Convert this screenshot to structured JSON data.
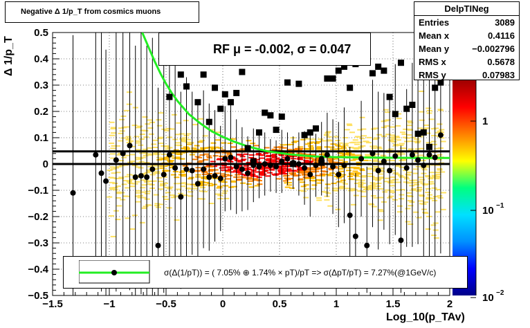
{
  "title": "Negative Δ 1/p_T from cosmics muons",
  "stats": {
    "name": "DelpTINeg",
    "rows": [
      {
        "label": "Entries",
        "value": "3089"
      },
      {
        "label": "Mean x",
        "value": "0.4116"
      },
      {
        "label": "Mean y",
        "value": "−0.002796"
      },
      {
        "label": "RMS x",
        "value": "0.5678"
      },
      {
        "label": "RMS y",
        "value": "0.07983"
      }
    ]
  },
  "fit_legend": "RF μ = -0.002, σ =   0.047",
  "bottom_legend": "σ(Δ(1/pT)) = ( 7.05% ⊕  1.74% × pT)/pT => σ(ΔpT/pT) =  7.27%(@1GeV/c)",
  "colors": {
    "fit_curve": "#22ee22",
    "lines": "#000000",
    "palette": [
      "#000088",
      "#0000ff",
      "#0090ff",
      "#00e0ff",
      "#00ff80",
      "#ffff00",
      "#ff8000",
      "#ff0000",
      "#a00000"
    ]
  },
  "chart_data": {
    "type": "scatter",
    "title": "Negative Δ 1/p_T from cosmics muons",
    "xlabel": "Log_10(p_TAv)",
    "ylabel": "Δ 1/p_T",
    "xlim": [
      -1.5,
      2
    ],
    "ylim": [
      -0.5,
      0.5
    ],
    "x_ticks": [
      "−1.5",
      "−1",
      "−0.5",
      "0",
      "0.5",
      "1",
      "1.5",
      "2"
    ],
    "y_ticks": [
      "−0.5",
      "−0.4",
      "−0.3",
      "−0.2",
      "−0.1",
      "0",
      "0.1",
      "0.2",
      "0.3",
      "0.4",
      "0.5"
    ],
    "z_ticks": [
      "1",
      "10^-1",
      "10^-2"
    ],
    "grid": true,
    "hlines": [
      0.048,
      0.0
    ],
    "fit_curve": {
      "x": [
        -0.71,
        -0.65,
        -0.6,
        -0.55,
        -0.5,
        -0.45,
        -0.4,
        -0.3,
        -0.2,
        -0.1,
        0.0,
        0.1,
        0.2,
        0.3,
        0.4,
        0.6,
        0.8,
        1.0,
        1.4,
        1.8,
        2.0
      ],
      "y": [
        0.5,
        0.44,
        0.39,
        0.345,
        0.305,
        0.27,
        0.24,
        0.19,
        0.155,
        0.125,
        0.103,
        0.085,
        0.07,
        0.058,
        0.048,
        0.036,
        0.029,
        0.026,
        0.024,
        0.023,
        0.023
      ]
    },
    "profile_points": {
      "x": [
        -1.32,
        -1.12,
        -1.07,
        -1.03,
        -0.94,
        -0.88,
        -0.82,
        -0.77,
        -0.72,
        -0.67,
        -0.62,
        -0.57,
        -0.52,
        -0.47,
        -0.42,
        -0.37,
        -0.32,
        -0.27,
        -0.22,
        -0.17,
        -0.12,
        -0.07,
        -0.02,
        0.02,
        0.07,
        0.12,
        0.17,
        0.22,
        0.27,
        0.32,
        0.37,
        0.42,
        0.47,
        0.52,
        0.57,
        0.62,
        0.67,
        0.72,
        0.77,
        0.82,
        0.87,
        0.92,
        0.97,
        1.02,
        1.07,
        1.12,
        1.17,
        1.22,
        1.27,
        1.32,
        1.37,
        1.42,
        1.47,
        1.52,
        1.57,
        1.62,
        1.67,
        1.72,
        1.77,
        1.82,
        1.87,
        1.92
      ],
      "y": [
        -0.11,
        0.035,
        -0.035,
        -0.065,
        0.015,
        0.04,
        0.07,
        -0.05,
        -0.045,
        -0.05,
        -0.02,
        -0.31,
        -0.04,
        0.035,
        -0.015,
        -0.125,
        -0.02,
        -0.025,
        -0.075,
        -0.02,
        -0.05,
        -0.045,
        -0.055,
        0.02,
        0.025,
        -0.01,
        -0.02,
        -0.035,
        -0.005,
        -0.01,
        0.0,
        -0.005,
        -0.01,
        0.01,
        0.02,
        0.005,
        0.0,
        -0.015,
        -0.04,
        -0.005,
        0.02,
        0.035,
        -0.01,
        -0.04,
        -0.005,
        -0.195,
        -0.275,
        0.02,
        -0.31,
        0.04,
        -0.025,
        0.01,
        -0.025,
        0.03,
        -0.29,
        -0.015,
        0.035,
        0.015,
        -0.005,
        0.035,
        0.025,
        0.11
      ],
      "yerr_up": [
        0.6,
        0.5,
        0.6,
        0.5,
        0.6,
        0.5,
        0.6,
        0.5,
        0.55,
        0.5,
        0.5,
        0.6,
        0.5,
        0.45,
        0.4,
        0.4,
        0.35,
        0.3,
        0.3,
        0.3,
        0.28,
        0.25,
        0.2,
        0.2,
        0.2,
        0.18,
        0.16,
        0.14,
        0.14,
        0.12,
        0.12,
        0.1,
        0.1,
        0.12,
        0.1,
        0.1,
        0.12,
        0.14,
        0.16,
        0.12,
        0.14,
        0.16,
        0.18,
        0.2,
        0.22,
        0.26,
        0.24,
        0.22,
        0.3,
        0.28,
        0.3,
        0.26,
        0.28,
        0.35,
        0.36,
        0.3,
        0.35,
        0.32,
        0.4,
        0.4,
        0.42,
        0.45
      ],
      "yerr_dn": [
        0.4,
        0.5,
        0.45,
        0.45,
        0.5,
        0.5,
        0.55,
        0.45,
        0.45,
        0.45,
        0.5,
        0.25,
        0.45,
        0.45,
        0.4,
        0.35,
        0.35,
        0.32,
        0.3,
        0.3,
        0.28,
        0.25,
        0.2,
        0.2,
        0.2,
        0.18,
        0.16,
        0.14,
        0.14,
        0.12,
        0.12,
        0.1,
        0.1,
        0.12,
        0.1,
        0.1,
        0.12,
        0.14,
        0.16,
        0.12,
        0.14,
        0.16,
        0.18,
        0.2,
        0.22,
        0.2,
        0.2,
        0.22,
        0.18,
        0.28,
        0.3,
        0.26,
        0.28,
        0.3,
        0.2,
        0.3,
        0.35,
        0.32,
        0.4,
        0.4,
        0.42,
        0.45
      ]
    },
    "rms_points": {
      "x": [
        -0.47,
        -0.37,
        -0.32,
        -0.22,
        -0.17,
        -0.12,
        -0.07,
        -0.02,
        0.02,
        0.07,
        0.12,
        0.17,
        0.22,
        0.27,
        0.32,
        0.37,
        0.42,
        0.47,
        0.52,
        0.57,
        0.62,
        0.67,
        0.72,
        0.77,
        0.82,
        0.87,
        0.92,
        0.97,
        1.02,
        1.07,
        1.12,
        1.17,
        1.32,
        1.37,
        1.42,
        1.47,
        1.52,
        1.57,
        1.62,
        1.67,
        1.72,
        1.77,
        1.82,
        1.87,
        1.92
      ],
      "y": [
        0.255,
        0.34,
        0.295,
        0.235,
        0.34,
        0.16,
        0.29,
        0.21,
        0.265,
        0.235,
        0.27,
        0.35,
        0.06,
        0.01,
        0.12,
        0.195,
        0.185,
        0.13,
        0.18,
        0.31,
        0.0,
        0.305,
        0.11,
        0.12,
        0.135,
        0.005,
        0.325,
        0.325,
        0.355,
        0.37,
        0.29,
        0.38,
        0.345,
        0.37,
        0.355,
        0.255,
        0.19,
        0.385,
        0.21,
        0.225,
        0.115,
        0.12,
        0.065,
        0.29,
        0.31
      ]
    }
  }
}
